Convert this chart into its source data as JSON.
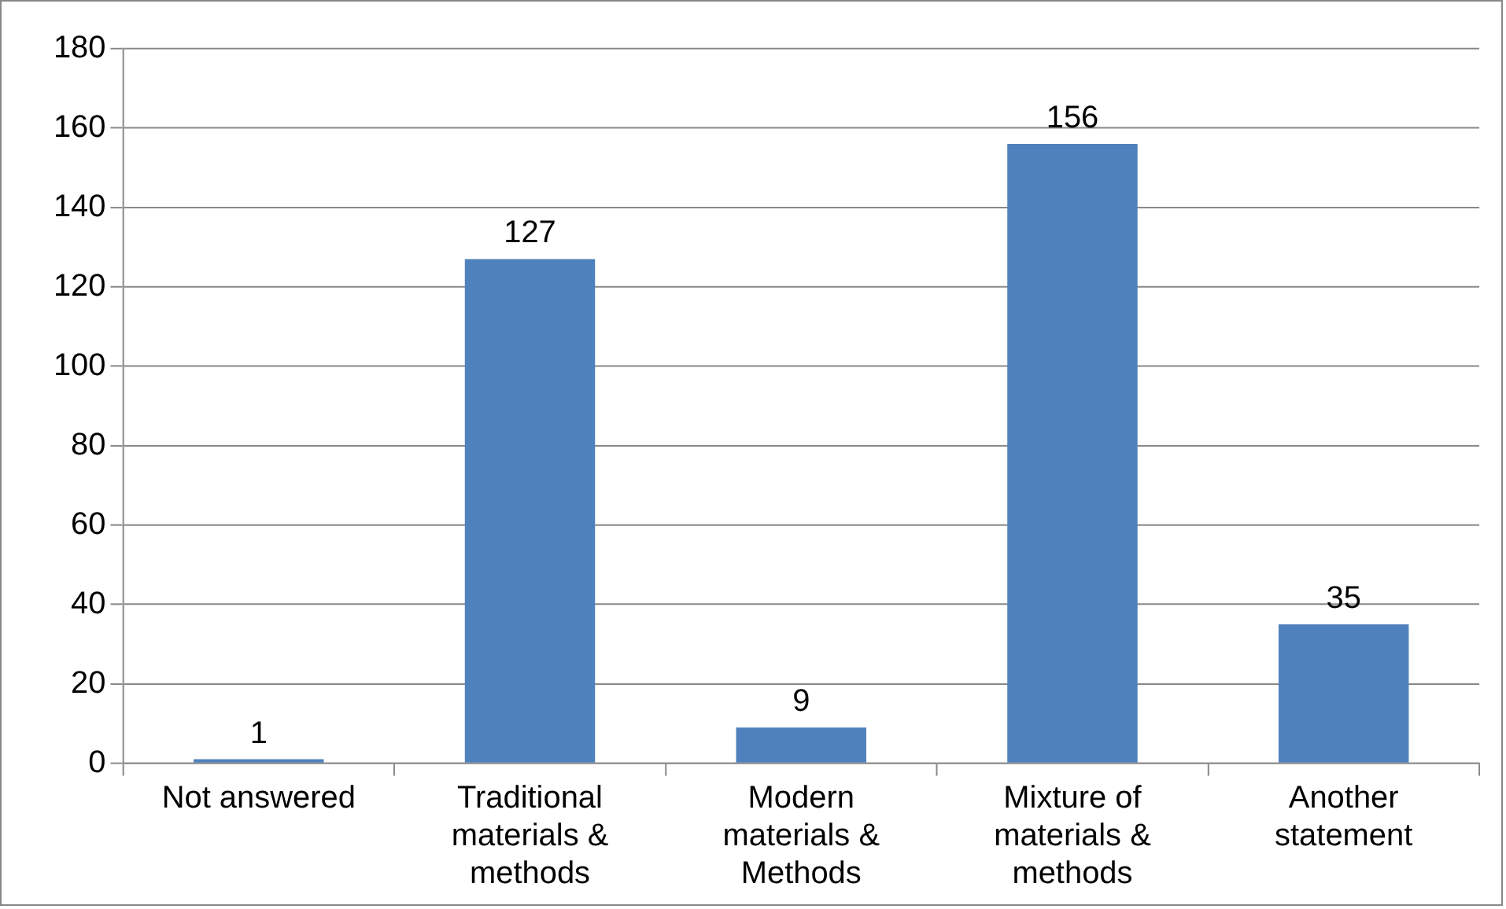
{
  "chart_data": {
    "type": "bar",
    "categories": [
      "Not answered",
      "Traditional materials & methods",
      "Modern materials & Methods",
      "Mixture of materials & methods",
      "Another statement"
    ],
    "values": [
      1,
      127,
      9,
      156,
      35
    ],
    "color": "#4f81bd",
    "ylim": [
      0,
      180
    ],
    "yticks": [
      0,
      20,
      40,
      60,
      80,
      100,
      120,
      140,
      160,
      180
    ],
    "grid": "y",
    "data_labels": true,
    "legend": false
  }
}
